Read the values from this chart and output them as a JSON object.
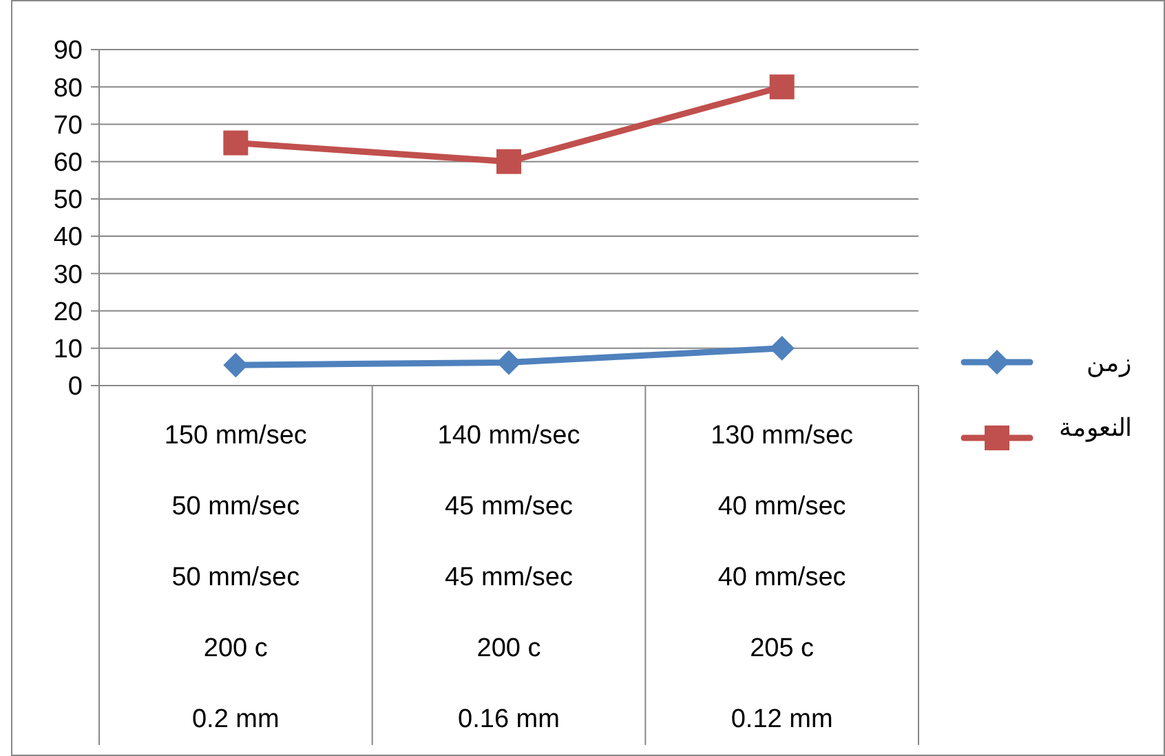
{
  "chart_data": {
    "type": "line",
    "categories": [
      "150 mm/sec\n50 mm/sec\n50 mm/sec\n200 c\n0.2 mm",
      "140 mm/sec\n45 mm/sec\n45 mm/sec\n200 c\n0.16 mm",
      "130 mm/sec\n40 mm/sec\n40 mm/sec\n205 c\n0.12 mm"
    ],
    "series": [
      {
        "name": "زمن",
        "color": "#4f81bd",
        "marker": "diamond",
        "values": [
          5.5,
          6.2,
          10
        ]
      },
      {
        "name": "النعومة",
        "color": "#c0504d",
        "marker": "square",
        "values": [
          65,
          60,
          80
        ]
      }
    ],
    "ylim": [
      0,
      90
    ],
    "yticks": [
      0,
      10,
      20,
      30,
      40,
      50,
      60,
      70,
      80,
      90
    ],
    "grid": "y",
    "legend": "right"
  }
}
